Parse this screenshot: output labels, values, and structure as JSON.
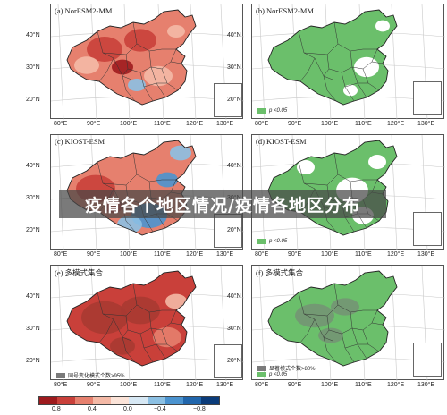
{
  "panels": [
    {
      "id": "a",
      "title": "(a) NorESM2-MM",
      "type": "diverging",
      "legend": ""
    },
    {
      "id": "b",
      "title": "(b) NorESM2-MM",
      "type": "significance",
      "legend": "p <0.05"
    },
    {
      "id": "c",
      "title": "(c) KIOST-ESM",
      "type": "diverging",
      "legend": ""
    },
    {
      "id": "d",
      "title": "(d) KIOST-ESM",
      "type": "significance",
      "legend": "p <0.05"
    },
    {
      "id": "e",
      "title": "(e) 多模式集合",
      "type": "diverging",
      "legend": "同号变化模式个数>95%"
    },
    {
      "id": "f",
      "title": "(f) 多模式集合",
      "type": "significance",
      "legend": "显著模式个数>80%",
      "legend2": "p <0.05"
    }
  ],
  "lat_labels": [
    "40°N",
    "30°N",
    "20°N"
  ],
  "lon_labels": [
    "80°E",
    "90°E",
    "100°E",
    "110°E",
    "120°E",
    "130°E"
  ],
  "colorbar": {
    "ticks": [
      "0.8",
      "0.4",
      "0.0",
      "−0.4",
      "−0.8"
    ],
    "colors": [
      "#9e1b1e",
      "#c9403a",
      "#e6806e",
      "#f4b9a6",
      "#fbe3d8",
      "#d7e8f4",
      "#8cc0e3",
      "#4b93cf",
      "#2166ac",
      "#0b3c7a"
    ]
  },
  "colors": {
    "sig_green": "#6bbf6b",
    "sig_dark": "#7a7a7a",
    "red_main": "#e05a4a",
    "red_dark": "#a83a32",
    "blue_main": "#5b9bd5"
  },
  "overlay_text": "疫情各个地区情况/疫情各地区分布"
}
